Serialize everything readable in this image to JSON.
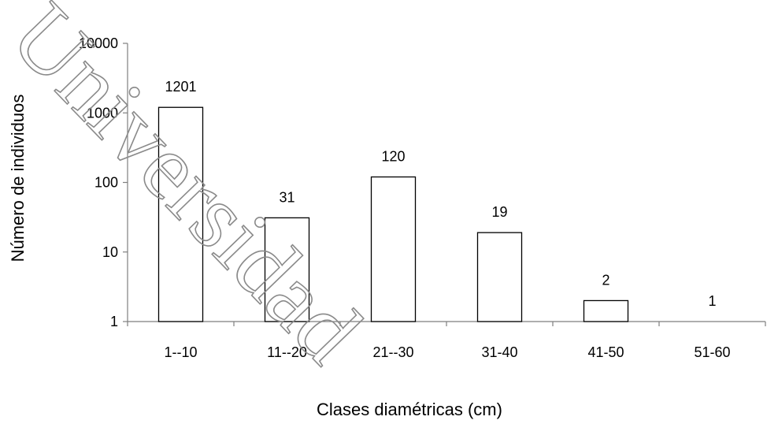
{
  "chart_data": {
    "type": "bar",
    "categories": [
      "1--10",
      "11--20",
      "21--30",
      "31-40",
      "41-50",
      "51-60"
    ],
    "values": [
      1201,
      31,
      120,
      19,
      2,
      1
    ],
    "data_labels": [
      "1201",
      "31",
      "120",
      "19",
      "2",
      "1"
    ],
    "xlabel": "Clases diamétricas (cm)",
    "ylabel": "Número de individuos",
    "y_scale": "log",
    "ylim": [
      1,
      10000
    ],
    "y_ticks": [
      1,
      10,
      100,
      1000,
      10000
    ],
    "y_tick_labels": [
      "1",
      "10",
      "100",
      "1000",
      "10000"
    ],
    "grid": false,
    "legend": "none",
    "bar_fill": "#ffffff",
    "bar_stroke": "#000000"
  },
  "watermark": {
    "text": "Universidad"
  }
}
